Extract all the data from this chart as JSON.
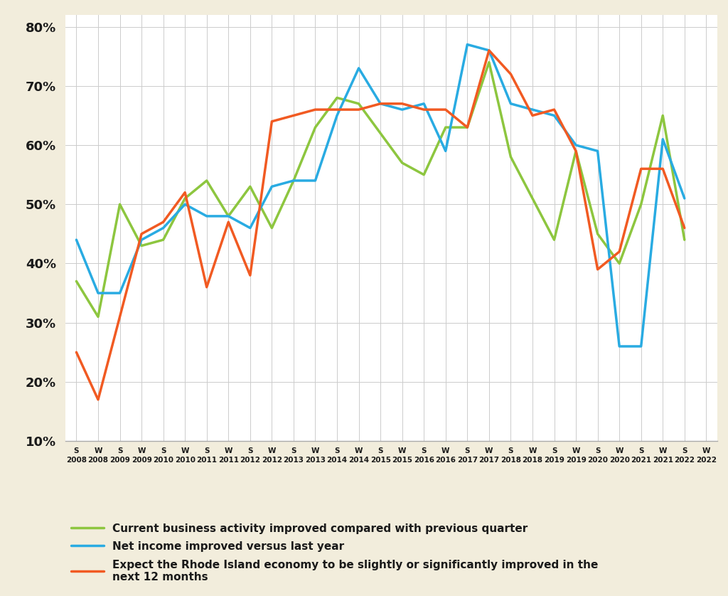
{
  "x_labels": [
    "S\n2008",
    "W\n2008",
    "S\n2009",
    "W\n2009",
    "S\n2010",
    "W\n2010",
    "S\n2011",
    "W\n2011",
    "S\n2012",
    "W\n2012",
    "S\n2013",
    "W\n2013",
    "S\n2014",
    "W\n2014",
    "S\n2015",
    "W\n2015",
    "S\n2016",
    "W\n2016",
    "S\n2017",
    "W\n2017",
    "S\n2018",
    "W\n2018",
    "S\n2019",
    "W\n2019",
    "S\n2020",
    "W\n2020",
    "S\n2021",
    "W\n2021",
    "S\n2022",
    "W\n2022"
  ],
  "green_series": [
    37,
    31,
    50,
    43,
    44,
    51,
    54,
    48,
    53,
    46,
    54,
    63,
    68,
    67,
    62,
    57,
    55,
    63,
    63,
    74,
    58,
    51,
    44,
    59,
    45,
    40,
    50,
    65,
    44,
    null
  ],
  "blue_series": [
    44,
    35,
    35,
    44,
    46,
    50,
    48,
    48,
    46,
    53,
    54,
    54,
    65,
    73,
    67,
    66,
    67,
    59,
    77,
    76,
    67,
    66,
    65,
    60,
    59,
    26,
    26,
    61,
    51,
    null
  ],
  "orange_series": [
    25,
    17,
    null,
    45,
    47,
    52,
    36,
    47,
    38,
    64,
    65,
    66,
    66,
    66,
    67,
    67,
    66,
    66,
    63,
    76,
    72,
    65,
    66,
    59,
    39,
    42,
    56,
    56,
    46,
    null
  ],
  "green_color": "#8dc63f",
  "blue_color": "#29abe2",
  "orange_color": "#f15a22",
  "background_color": "#f2eddc",
  "plot_bg_color": "#ffffff",
  "grid_color": "#cccccc",
  "ylim": [
    10,
    82
  ],
  "yticks": [
    10,
    20,
    30,
    40,
    50,
    60,
    70,
    80
  ],
  "legend_labels": [
    "Current business activity improved compared with previous quarter",
    "Net income improved versus last year",
    "Expect the Rhode Island economy to be slightly or significantly improved in the\nnext 12 months"
  ],
  "line_width": 2.5
}
